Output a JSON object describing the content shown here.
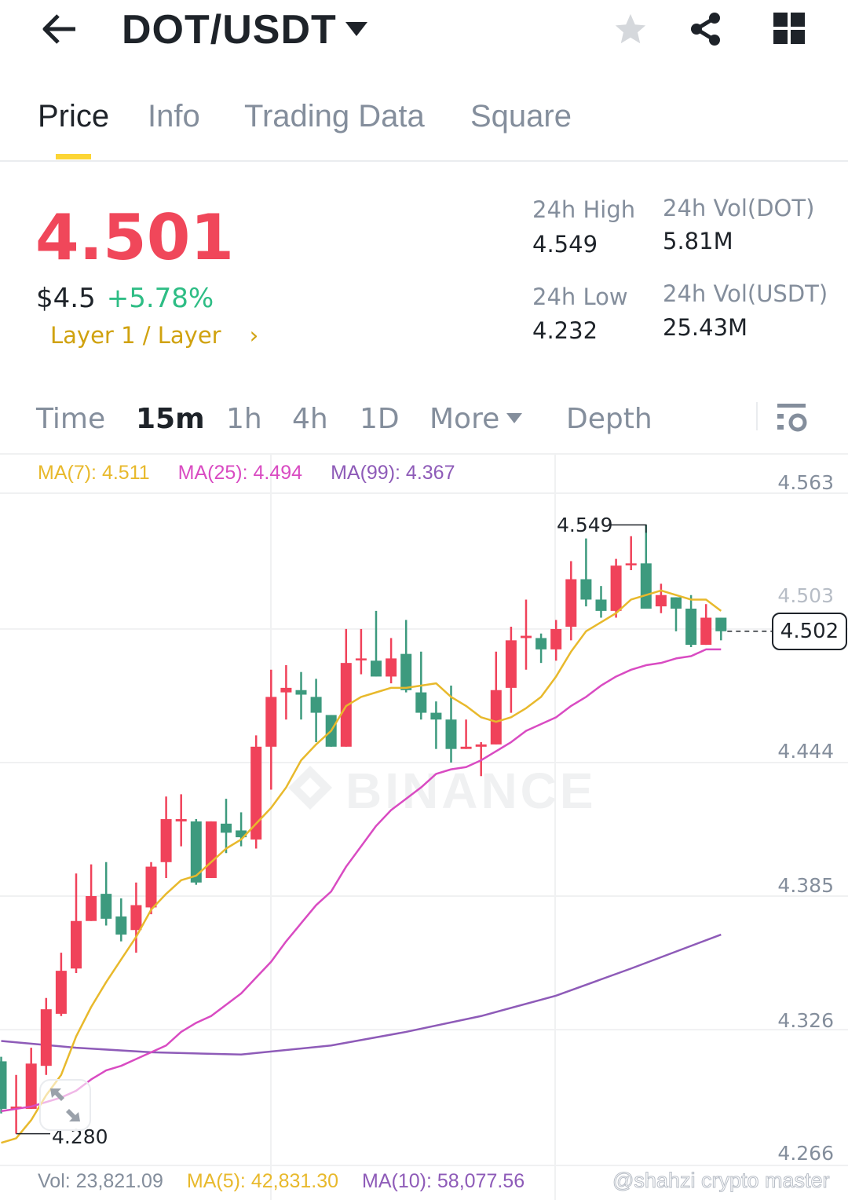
{
  "header": {
    "title": "DOT/USDT",
    "icons": [
      "back-arrow-icon",
      "caret-down-icon",
      "star-icon",
      "share-icon",
      "grid-icon"
    ]
  },
  "tabs": [
    {
      "label": "Price",
      "active": true
    },
    {
      "label": "Info"
    },
    {
      "label": "Trading Data"
    },
    {
      "label": "Square"
    }
  ],
  "ticker": {
    "last_price": "4.501",
    "usd_price": "$4.5",
    "change": "+5.78%",
    "tag": "Layer 1 / Layer",
    "high_label": "24h High",
    "high": "4.549",
    "low_label": "24h Low",
    "low": "4.232",
    "vol_base_label": "24h Vol(DOT)",
    "vol_base": "5.81M",
    "vol_quote_label": "24h Vol(USDT)",
    "vol_quote": "25.43M"
  },
  "intervals": [
    {
      "label": "Time"
    },
    {
      "label": "15m",
      "active": true
    },
    {
      "label": "1h"
    },
    {
      "label": "4h"
    },
    {
      "label": "1D"
    },
    {
      "label": "More"
    },
    {
      "label": "Depth"
    }
  ],
  "ma_legend": {
    "ma7": "MA(7): 4.511",
    "ma25": "MA(25): 4.494",
    "ma99": "MA(99): 4.367"
  },
  "volume_legend": {
    "vol": "Vol: 23,821.09",
    "ma5": "MA(5): 42,831.30",
    "ma10": "MA(10): 58,077.56"
  },
  "watermark": "BINANCE",
  "credit": "@shahzi crypto master",
  "colors": {
    "up": "#f0425a",
    "down": "#3d9a7e",
    "ma7": "#e8b92c",
    "ma25": "#d94bc2",
    "ma99": "#8e5bb8",
    "change": "#2ebd85",
    "accent": "#fcd535"
  },
  "chart_data": {
    "type": "candlestick",
    "interval": "15m",
    "ylim": [
      4.266,
      4.563
    ],
    "y_ticks": [
      "4.563",
      "4.503",
      "4.444",
      "4.385",
      "4.326",
      "4.266"
    ],
    "grid": true,
    "current_price": "4.502",
    "high_marker": "4.549",
    "low_marker": "4.280",
    "candles": [
      [
        4.312,
        4.314,
        4.289,
        4.291
      ],
      [
        4.291,
        4.306,
        4.28,
        4.292
      ],
      [
        4.291,
        4.318,
        4.291,
        4.311
      ],
      [
        4.31,
        4.34,
        4.306,
        4.335
      ],
      [
        4.333,
        4.36,
        4.332,
        4.352
      ],
      [
        4.353,
        4.395,
        4.351,
        4.374
      ],
      [
        4.374,
        4.399,
        4.374,
        4.385
      ],
      [
        4.386,
        4.4,
        4.372,
        4.375
      ],
      [
        4.376,
        4.384,
        4.365,
        4.368
      ],
      [
        4.37,
        4.391,
        4.36,
        4.381
      ],
      [
        4.38,
        4.4,
        4.377,
        4.398
      ],
      [
        4.4,
        4.429,
        4.393,
        4.419
      ],
      [
        4.418,
        4.43,
        4.407,
        4.419
      ],
      [
        4.418,
        4.419,
        4.39,
        4.391
      ],
      [
        4.393,
        4.418,
        4.393,
        4.418
      ],
      [
        4.417,
        4.428,
        4.404,
        4.413
      ],
      [
        4.414,
        4.422,
        4.407,
        4.411
      ],
      [
        4.41,
        4.456,
        4.406,
        4.451
      ],
      [
        4.451,
        4.485,
        4.432,
        4.473
      ],
      [
        4.475,
        4.487,
        4.463,
        4.477
      ],
      [
        4.476,
        4.484,
        4.463,
        4.474
      ],
      [
        4.473,
        4.481,
        4.453,
        4.466
      ],
      [
        4.465,
        4.465,
        4.451,
        4.451
      ],
      [
        4.451,
        4.503,
        4.451,
        4.488
      ],
      [
        4.4895,
        4.503,
        4.483,
        4.49
      ],
      [
        4.489,
        4.511,
        4.482,
        4.482
      ],
      [
        4.482,
        4.499,
        4.479,
        4.49
      ],
      [
        4.492,
        4.507,
        4.475,
        4.476
      ],
      [
        4.475,
        4.493,
        4.463,
        4.466
      ],
      [
        4.466,
        4.471,
        4.45,
        4.463
      ],
      [
        4.463,
        4.478,
        4.444,
        4.45
      ],
      [
        4.45,
        4.463,
        4.45,
        4.451
      ],
      [
        4.451,
        4.453,
        4.438,
        4.452
      ],
      [
        4.452,
        4.493,
        4.452,
        4.476
      ],
      [
        4.477,
        4.504,
        4.466,
        4.498
      ],
      [
        4.499,
        4.516,
        4.485,
        4.5
      ],
      [
        4.499,
        4.501,
        4.488,
        4.494
      ],
      [
        4.494,
        4.507,
        4.489,
        4.503
      ],
      [
        4.504,
        4.533,
        4.498,
        4.525
      ],
      [
        4.525,
        4.543,
        4.513,
        4.516
      ],
      [
        4.516,
        4.522,
        4.508,
        4.511
      ],
      [
        4.511,
        4.534,
        4.508,
        4.531
      ],
      [
        4.5315,
        4.544,
        4.529,
        4.532
      ],
      [
        4.532,
        4.549,
        4.512,
        4.512
      ],
      [
        4.513,
        4.523,
        4.51,
        4.518
      ],
      [
        4.517,
        4.517,
        4.502,
        4.512
      ],
      [
        4.512,
        4.518,
        4.495,
        4.496
      ],
      [
        4.496,
        4.514,
        4.496,
        4.508
      ],
      [
        4.508,
        4.508,
        4.498,
        4.502
      ]
    ],
    "ma7": [
      4.276,
      4.278,
      4.286,
      4.297,
      4.306,
      4.323,
      4.336,
      4.347,
      4.357,
      4.367,
      4.379,
      4.386,
      4.392,
      4.394,
      4.4,
      4.406,
      4.41,
      4.417,
      4.424,
      4.433,
      4.445,
      4.452,
      4.458,
      4.469,
      4.473,
      4.475,
      4.477,
      4.477,
      4.478,
      4.479,
      4.473,
      4.469,
      4.464,
      4.462,
      4.464,
      4.468,
      4.473,
      4.482,
      4.493,
      4.502,
      4.506,
      4.51,
      4.516,
      4.518,
      4.52,
      4.518,
      4.516,
      4.516,
      4.511
    ],
    "ma25": [
      4.29,
      4.291,
      4.292,
      4.294,
      4.296,
      4.299,
      4.304,
      4.308,
      4.31,
      4.313,
      4.316,
      4.319,
      4.325,
      4.329,
      4.332,
      4.337,
      4.342,
      4.349,
      4.356,
      4.365,
      4.373,
      4.381,
      4.387,
      4.398,
      4.407,
      4.416,
      4.423,
      4.428,
      4.433,
      4.439,
      4.441,
      4.442,
      4.445,
      4.449,
      4.453,
      4.458,
      4.461,
      4.464,
      4.469,
      4.473,
      4.478,
      4.482,
      4.485,
      4.487,
      4.488,
      4.49,
      4.491,
      4.494,
      4.494
    ],
    "ma99": [
      [
        0,
        4.321
      ],
      [
        5,
        4.318
      ],
      [
        10,
        4.316
      ],
      [
        16,
        4.315
      ],
      [
        22,
        4.319
      ],
      [
        27,
        4.325
      ],
      [
        32,
        4.332
      ],
      [
        37,
        4.341
      ],
      [
        42,
        4.353
      ],
      [
        48,
        4.368
      ]
    ]
  }
}
